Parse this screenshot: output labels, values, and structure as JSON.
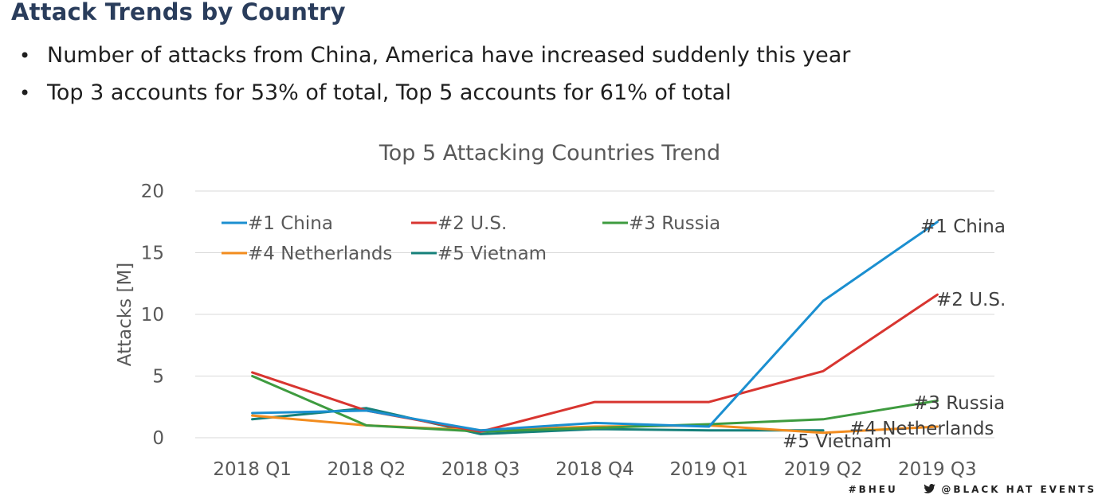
{
  "slide": {
    "title": "Attack Trends by Country",
    "bullets": [
      "Number of attacks from China, America have increased suddenly this year",
      "Top 3 accounts for 53% of total, Top 5 accounts for 61% of total"
    ],
    "bullet_glyph": "•"
  },
  "footer": {
    "hashtag": "#BHEU",
    "handle": "@BLACK HAT EVENTS",
    "icon": "twitter-bird-icon"
  },
  "chart_data": {
    "type": "line",
    "title": "Top 5 Attacking Countries Trend",
    "xlabel": "",
    "ylabel": "Attacks [M]",
    "ylim": [
      0,
      20
    ],
    "yticks": [
      0,
      5,
      10,
      15,
      20
    ],
    "grid": true,
    "legend_position": "top-left",
    "categories": [
      "2018 Q1",
      "2018 Q2",
      "2018 Q3",
      "2018 Q4",
      "2019 Q1",
      "2019 Q2",
      "2019 Q3"
    ],
    "series": [
      {
        "name": "#1 China",
        "color": "#1b8fd0",
        "values": [
          2.0,
          2.2,
          0.6,
          1.2,
          0.9,
          11.1,
          17.5
        ],
        "end_label": "#1 China"
      },
      {
        "name": "#2 U.S.",
        "color": "#d83530",
        "values": [
          5.3,
          2.2,
          0.5,
          2.9,
          2.9,
          5.4,
          11.6
        ],
        "end_label": "#2 U.S."
      },
      {
        "name": "#3 Russia",
        "color": "#3e9b3f",
        "values": [
          5.0,
          1.0,
          0.5,
          0.8,
          1.1,
          1.5,
          3.0
        ],
        "end_label": "#3 Russia"
      },
      {
        "name": "#4 Netherlands",
        "color": "#f28c1e",
        "values": [
          1.8,
          1.0,
          0.6,
          0.9,
          1.0,
          0.4,
          0.9
        ],
        "end_label": "#4 Netherlands"
      },
      {
        "name": "#5 Vietnam",
        "color": "#15807a",
        "values": [
          1.5,
          2.4,
          0.3,
          0.7,
          0.6,
          0.6,
          null
        ],
        "end_label": "#5 Vietnam"
      }
    ]
  }
}
